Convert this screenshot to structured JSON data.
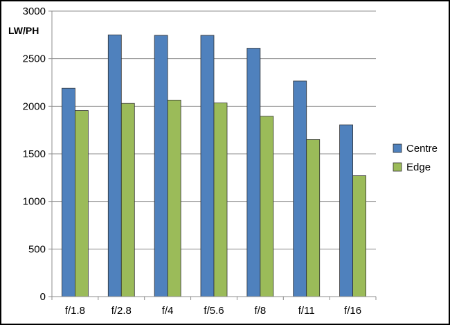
{
  "chart_data": {
    "type": "bar",
    "title": "",
    "xlabel": "",
    "ylabel": "LW/PH",
    "categories": [
      "f/1.8",
      "f/2.8",
      "f/4",
      "f/5.6",
      "f/8",
      "f/11",
      "f/16"
    ],
    "series": [
      {
        "name": "Centre",
        "color": "#4f81bd",
        "values": [
          2190,
          2750,
          2745,
          2745,
          2610,
          2265,
          1805
        ]
      },
      {
        "name": "Edge",
        "color": "#9bbb59",
        "values": [
          1955,
          2030,
          2065,
          2035,
          1895,
          1650,
          1270
        ]
      }
    ],
    "ylim": [
      0,
      3000
    ],
    "yticks": [
      0,
      500,
      1000,
      1500,
      2000,
      2500,
      3000
    ],
    "grid": true,
    "legend": "right"
  }
}
